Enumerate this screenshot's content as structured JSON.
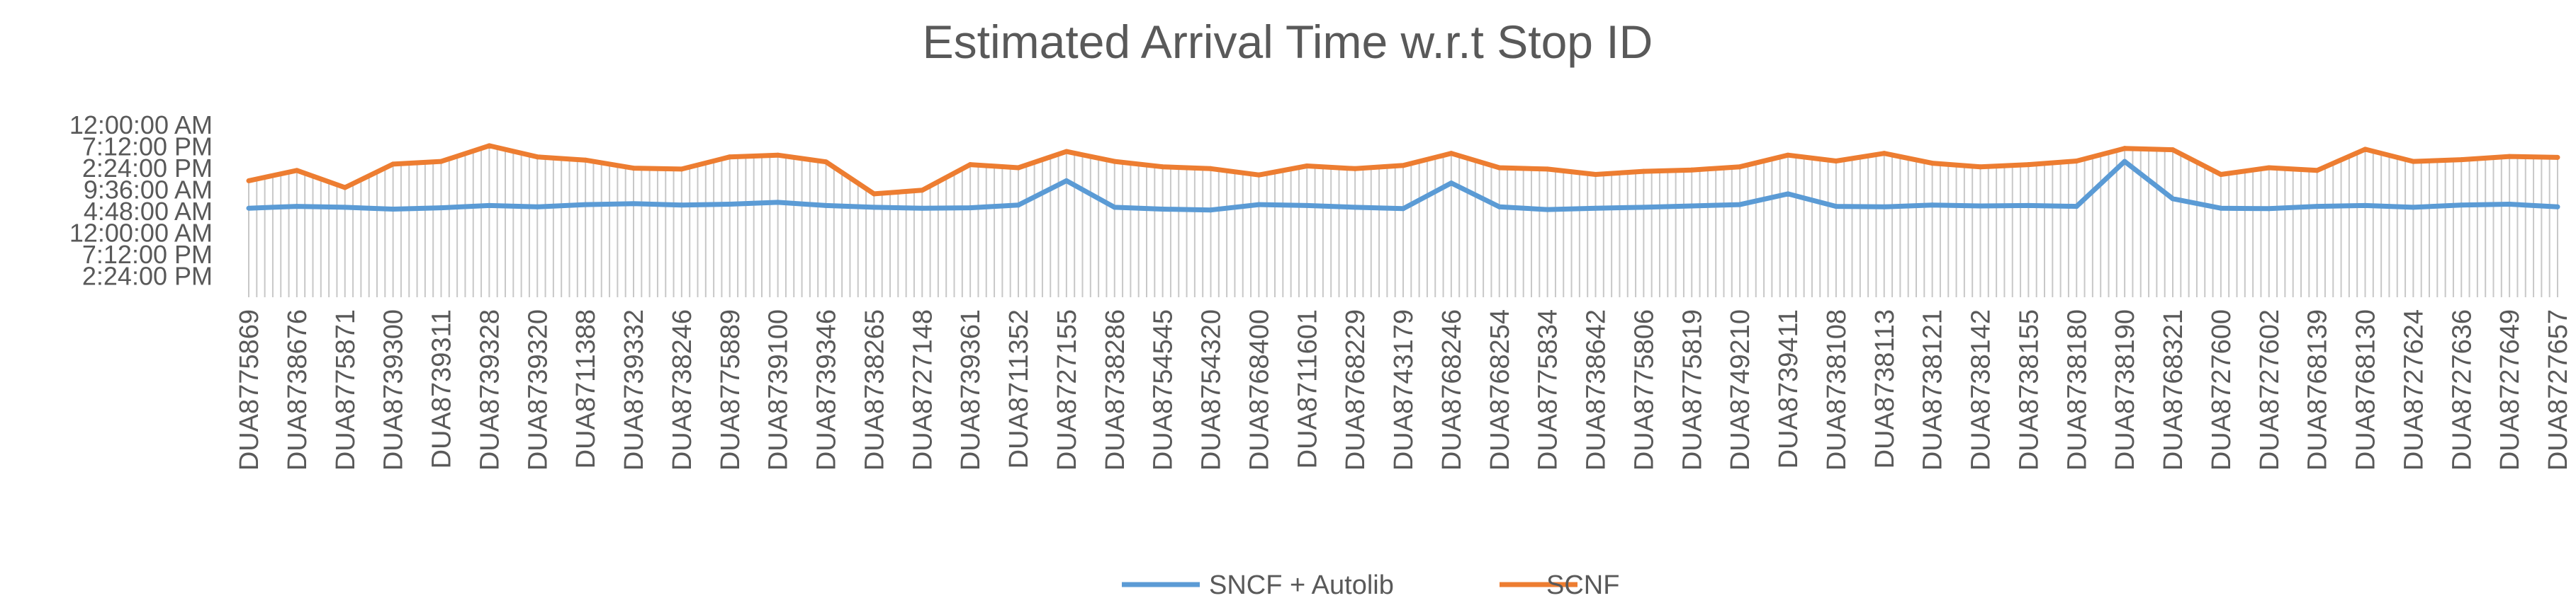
{
  "chart_data": {
    "type": "line",
    "title": "Estimated Arrival Time w.r.t Stop ID",
    "xlabel": "",
    "ylabel": "",
    "y_unit": "hours (time of day; axis repeats beyond 24h)",
    "ylim": [
      -14.4,
      24
    ],
    "y_ticks": [
      {
        "value": 24.0,
        "label": "12:00:00 AM"
      },
      {
        "value": 19.2,
        "label": "7:12:00 PM"
      },
      {
        "value": 14.4,
        "label": "2:24:00 PM"
      },
      {
        "value": 9.6,
        "label": "9:36:00 AM"
      },
      {
        "value": 4.8,
        "label": "4:48:00 AM"
      },
      {
        "value": 0.0,
        "label": "12:00:00 AM"
      },
      {
        "value": -4.8,
        "label": "7:12:00 PM"
      },
      {
        "value": -9.6,
        "label": "2:24:00 PM"
      }
    ],
    "categories": [
      "DUA8775869",
      "DUA8738676",
      "DUA8775871",
      "DUA8739300",
      "DUA8739311",
      "DUA8739328",
      "DUA8739320",
      "DUA8711388",
      "DUA8739332",
      "DUA8738246",
      "DUA8775889",
      "DUA8739100",
      "DUA8739346",
      "DUA8738265",
      "DUA8727148",
      "DUA8739361",
      "DUA8711352",
      "DUA8727155",
      "DUA8738286",
      "DUA8754545",
      "DUA8754320",
      "DUA8768400",
      "DUA8711601",
      "DUA8768229",
      "DUA8743179",
      "DUA8768246",
      "DUA8768254",
      "DUA8775834",
      "DUA8738642",
      "DUA8775806",
      "DUA8775819",
      "DUA8749210",
      "DUA8739411",
      "DUA8738108",
      "DUA8738113",
      "DUA8738121",
      "DUA8738142",
      "DUA8738155",
      "DUA8738180",
      "DUA8738190",
      "DUA8768321",
      "DUA8727600",
      "DUA8727602",
      "DUA8768139",
      "DUA8768130",
      "DUA8727624",
      "DUA8727636",
      "DUA8727649",
      "DUA8727657"
    ],
    "series": [
      {
        "name": "SNCF + Autolib",
        "color": "#5B9BD5",
        "values": [
          5.4,
          5.8,
          5.6,
          5.2,
          5.5,
          6.0,
          5.7,
          6.2,
          6.4,
          6.1,
          6.3,
          6.7,
          6.0,
          5.6,
          5.4,
          5.5,
          6.1,
          11.5,
          5.6,
          5.2,
          5.0,
          6.2,
          6.0,
          5.6,
          5.3,
          11.0,
          5.7,
          5.1,
          5.4,
          5.6,
          5.9,
          6.2,
          8.6,
          5.8,
          5.7,
          6.1,
          5.9,
          6.0,
          5.8,
          15.8,
          7.5,
          5.4,
          5.3,
          5.8,
          6.0,
          5.6,
          6.1,
          6.3,
          5.7
        ]
      },
      {
        "name": "SCNF",
        "color": "#ED7D31",
        "values": [
          11.5,
          13.8,
          10.0,
          15.2,
          15.8,
          19.3,
          16.8,
          16.1,
          14.3,
          14.1,
          16.8,
          17.2,
          15.7,
          8.6,
          9.4,
          15.1,
          14.4,
          18.0,
          15.8,
          14.6,
          14.2,
          12.8,
          14.8,
          14.2,
          14.9,
          17.6,
          14.4,
          14.1,
          12.9,
          13.6,
          13.9,
          14.6,
          17.2,
          15.9,
          17.6,
          15.4,
          14.6,
          15.1,
          15.9,
          18.7,
          18.4,
          12.9,
          14.4,
          13.8,
          18.5,
          15.8,
          16.2,
          16.9,
          16.7
        ]
      }
    ],
    "grid": false,
    "drop_lines": true,
    "legend": {
      "position": "bottom",
      "items": [
        {
          "label": "SNCF + Autolib",
          "color": "#5B9BD5"
        },
        {
          "label": "SCNF",
          "color": "#ED7D31"
        }
      ]
    }
  }
}
